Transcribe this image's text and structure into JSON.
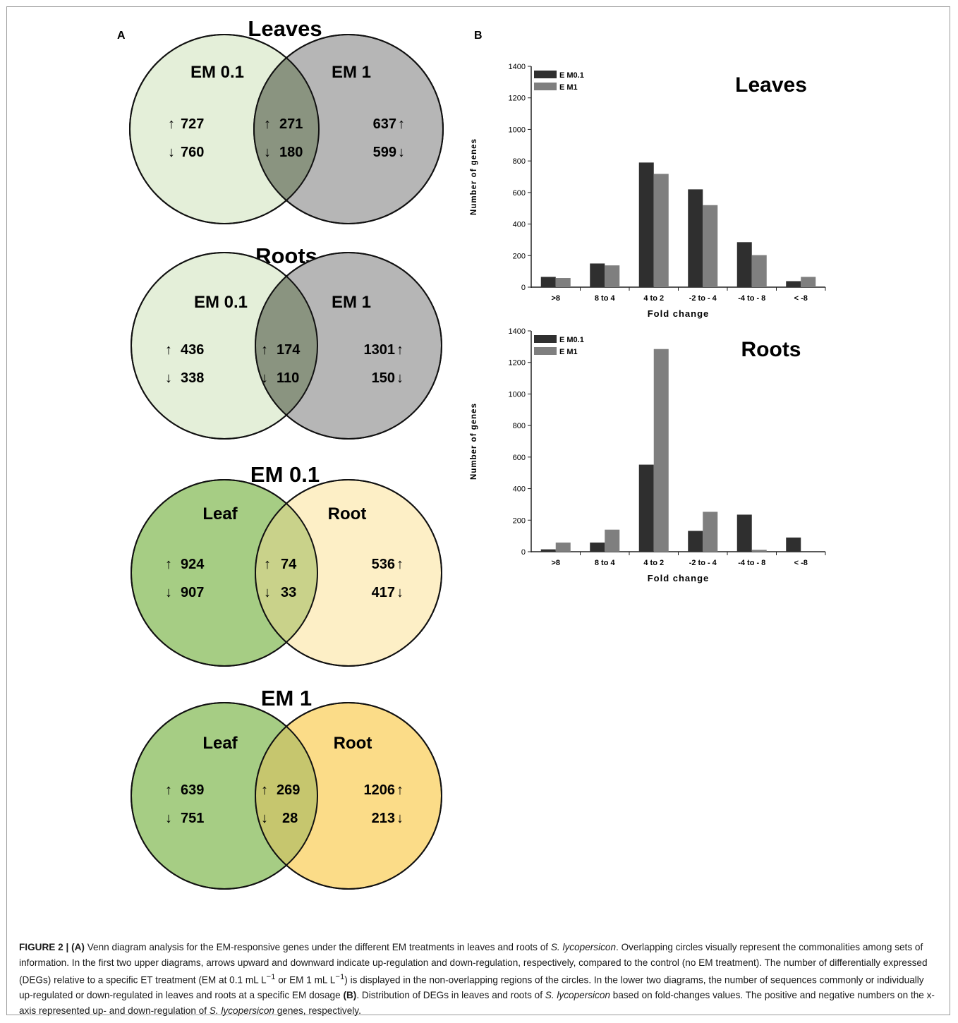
{
  "panel_labels": {
    "a": "A",
    "b": "B"
  },
  "colors": {
    "em01_fill": "#e4efd9",
    "em1_fill": "#b6b6b6",
    "overlap_gray": "#8a9480",
    "leaf_fill": "#a6cd84",
    "root01_fill": "#fdefc6",
    "root1_fill": "#fbdc88",
    "overlap_leafroot01": "#c9d28a",
    "overlap_leafroot1": "#c6c66e",
    "bar_em01": "#2f2f2f",
    "bar_em1": "#7f7f7f"
  },
  "venns": [
    {
      "title": "Leaves",
      "left_label": "EM 0.1",
      "right_label": "EM 1",
      "left_up": "727",
      "left_down": "760",
      "mid_up": "271",
      "mid_down": "180",
      "right_up": "637",
      "right_down": "599"
    },
    {
      "title": "Roots",
      "left_label": "EM 0.1",
      "right_label": "EM 1",
      "left_up": "436",
      "left_down": "338",
      "mid_up": "174",
      "mid_down": "110",
      "right_up": "1301",
      "right_down": "150"
    },
    {
      "title": "EM 0.1",
      "left_label": "Leaf",
      "right_label": "Root",
      "left_up": "924",
      "left_down": "907",
      "mid_up": "74",
      "mid_down": "33",
      "right_up": "536",
      "right_down": "417"
    },
    {
      "title": "EM 1",
      "left_label": "Leaf",
      "right_label": "Root",
      "left_up": "639",
      "left_down": "751",
      "mid_up": "269",
      "mid_down": "28",
      "right_up": "1206",
      "right_down": "213"
    }
  ],
  "chart_data": [
    {
      "type": "bar",
      "title": "Leaves",
      "xlabel": "Fold change",
      "ylabel": "Number of genes",
      "ylim": [
        0,
        1400
      ],
      "yticks": [
        "0",
        "200",
        "400",
        "600",
        "800",
        "1000",
        "1200",
        "1400"
      ],
      "categories": [
        ">8",
        "8 to 4",
        "4 to 2",
        "-2 to - 4",
        "-4 to - 8",
        "< -8"
      ],
      "legend_position": "top-left",
      "series": [
        {
          "name": "E M0.1",
          "values": [
            65,
            150,
            790,
            620,
            285,
            38
          ]
        },
        {
          "name": "E M1",
          "values": [
            58,
            138,
            718,
            520,
            203,
            65
          ]
        }
      ]
    },
    {
      "type": "bar",
      "title": "Roots",
      "xlabel": "Fold change",
      "ylabel": "Number of genes",
      "ylim": [
        0,
        1400
      ],
      "yticks": [
        "0",
        "200",
        "400",
        "600",
        "800",
        "1000",
        "1200",
        "1400"
      ],
      "categories": [
        ">8",
        "8 to 4",
        "4 to 2",
        "-2 to - 4",
        "-4 to - 8",
        "< -8"
      ],
      "legend_position": "top-left",
      "series": [
        {
          "name": "E M0.1",
          "values": [
            15,
            58,
            552,
            132,
            235,
            90
          ]
        },
        {
          "name": "E M1",
          "values": [
            58,
            140,
            1285,
            253,
            12,
            0
          ]
        }
      ]
    }
  ],
  "caption": {
    "figure": "FIGURE 2 |",
    "panel_a": "(A)",
    "text1": " Venn diagram analysis for the EM-responsive genes under the different EM treatments in leaves and roots of ",
    "species1": "S. lycopersicon",
    "text2": ". Overlapping circles visually represent the commonalities among sets of information. In the first two upper diagrams, arrows upward and downward indicate up-regulation and down-regulation, respectively, compared to the control (no EM treatment). The number of differentially expressed (DEGs) relative to a specific ET treatment (EM at 0.1 mL L",
    "sup1": "−1",
    "text3": " or EM 1 mL L",
    "sup2": "−1",
    "text4": ") is displayed in the non-overlapping regions of the circles. In the lower two diagrams, the number of sequences commonly or individually up-regulated or down-regulated in leaves and roots at a specific EM dosage ",
    "panel_b": "(B)",
    "text5": ". Distribution of DEGs in leaves and roots of ",
    "species2": "S. lycopersicon",
    "text6": " based on fold-changes values. The positive and negative numbers on the x-axis represented up- and down-regulation of ",
    "species3": "S. lycopersicon",
    "text7": " genes, respectively."
  }
}
